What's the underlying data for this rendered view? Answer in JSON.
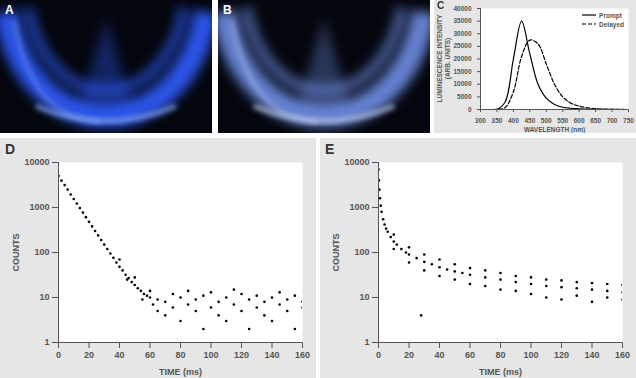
{
  "photos": [
    {
      "panel": "A"
    },
    {
      "panel": "B"
    }
  ],
  "chart_data": [
    {
      "panel": "C",
      "type": "line",
      "x_label": "WAVELENGTH (nm)",
      "y_label": "LUMINESCENCE INTENSITY (ARB. UNITS)",
      "x": [
        300,
        325,
        350,
        375,
        400,
        425,
        450,
        475,
        500,
        525,
        550,
        575,
        600,
        625,
        650,
        675,
        700,
        725,
        750
      ],
      "series": [
        {
          "name": "Prompt",
          "color": "#000000",
          "line_style": "solid",
          "values": [
            0,
            0,
            100,
            3000,
            20000,
            35000,
            22000,
            10000,
            4500,
            2000,
            900,
            500,
            300,
            150,
            80,
            40,
            20,
            0,
            0
          ]
        },
        {
          "name": "Delayed",
          "color": "#000000",
          "line_style": "dashed",
          "values": [
            0,
            0,
            50,
            800,
            7000,
            21000,
            27500,
            26000,
            18000,
            10000,
            5000,
            2500,
            1300,
            700,
            350,
            150,
            60,
            20,
            0
          ]
        }
      ],
      "xlim": [
        300,
        750
      ],
      "xticks": [
        300,
        350,
        400,
        450,
        500,
        550,
        600,
        650,
        700,
        750
      ],
      "ylim": [
        0,
        40000
      ],
      "yticks": [
        0,
        5000,
        10000,
        15000,
        20000,
        25000,
        30000,
        35000,
        40000
      ],
      "legend": "top-right",
      "grid": false
    },
    {
      "panel": "D",
      "type": "scatter",
      "x_label": "TIME (ms)",
      "y_label": "COUNTS",
      "color": "#000000",
      "marker": "circle",
      "log": "y",
      "grid": false,
      "x": [
        0,
        2,
        4,
        6,
        8,
        10,
        12,
        14,
        16,
        18,
        20,
        22,
        24,
        26,
        28,
        30,
        32,
        34,
        36,
        38,
        40,
        42,
        44,
        46,
        48,
        50,
        52,
        54,
        56,
        58,
        60,
        40,
        45,
        50,
        55,
        60,
        62,
        65,
        65,
        70,
        70,
        75,
        75,
        80,
        80,
        85,
        85,
        90,
        90,
        95,
        95,
        100,
        100,
        105,
        105,
        110,
        110,
        115,
        115,
        120,
        120,
        125,
        125,
        130,
        130,
        135,
        135,
        140,
        140,
        145,
        145,
        150,
        150,
        155,
        155,
        160,
        160
      ],
      "values": [
        5000,
        3950,
        3150,
        2500,
        1950,
        1550,
        1230,
        970,
        770,
        610,
        480,
        380,
        300,
        240,
        190,
        150,
        120,
        95,
        76,
        60,
        48,
        40,
        32,
        27,
        22,
        19,
        16,
        14,
        12,
        11,
        10,
        70,
        25,
        28,
        9,
        14,
        7,
        9,
        5,
        8,
        4,
        12,
        6,
        10,
        3,
        7,
        14,
        5,
        9,
        2,
        11,
        6,
        13,
        4,
        8,
        10,
        3,
        7,
        15,
        5,
        12,
        2,
        9,
        6,
        11,
        4,
        8,
        10,
        3,
        7,
        13,
        5,
        9,
        2,
        11,
        6,
        8
      ],
      "xlim": [
        0,
        160
      ],
      "xticks": [
        0,
        20,
        40,
        60,
        80,
        100,
        120,
        140,
        160
      ],
      "ylim": [
        1,
        10000
      ],
      "yticks": [
        1,
        10,
        100,
        1000,
        10000
      ]
    },
    {
      "panel": "E",
      "type": "scatter",
      "x_label": "TIME (ms)",
      "y_label": "COUNTS",
      "color": "#000000",
      "marker": "circle",
      "log": "y",
      "grid": false,
      "x": [
        0,
        0.3,
        0.6,
        1,
        1.5,
        2,
        3,
        4,
        5,
        6,
        8,
        10,
        12,
        15,
        18,
        20,
        25,
        30,
        35,
        40,
        45,
        50,
        55,
        60,
        70,
        80,
        90,
        100,
        110,
        120,
        130,
        140,
        150,
        160,
        10,
        10,
        20,
        20,
        28,
        30,
        30,
        40,
        40,
        50,
        50,
        60,
        60,
        70,
        70,
        80,
        80,
        90,
        90,
        100,
        100,
        110,
        110,
        120,
        120,
        130,
        130,
        140,
        140,
        150,
        150,
        160,
        160
      ],
      "values": [
        7000,
        4000,
        2500,
        1600,
        1100,
        800,
        550,
        420,
        340,
        290,
        220,
        175,
        150,
        120,
        100,
        90,
        75,
        62,
        55,
        47,
        42,
        38,
        35,
        32,
        28,
        25,
        22,
        20,
        18,
        17,
        16,
        15,
        14,
        13,
        250,
        120,
        130,
        60,
        4,
        90,
        40,
        70,
        30,
        55,
        25,
        45,
        20,
        40,
        18,
        35,
        15,
        30,
        14,
        28,
        12,
        25,
        10,
        24,
        9,
        22,
        11,
        21,
        8,
        20,
        10,
        19,
        9
      ],
      "xlim": [
        0,
        160
      ],
      "xticks": [
        0,
        20,
        40,
        60,
        80,
        100,
        120,
        140,
        160
      ],
      "ylim": [
        1,
        10000
      ],
      "yticks": [
        1,
        10,
        100,
        1000,
        10000
      ]
    }
  ]
}
